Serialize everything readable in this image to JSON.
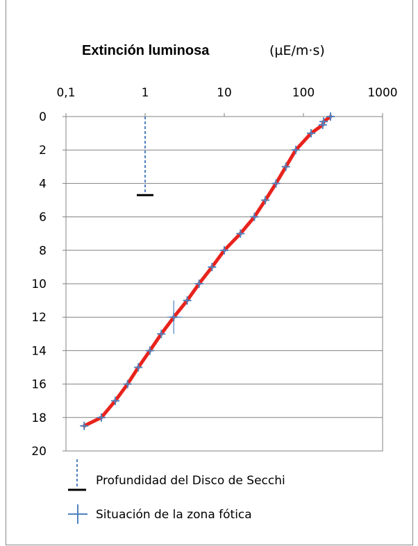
{
  "chart_data": {
    "type": "line",
    "title": "Extinción luminosa",
    "unit": "(µE/m·s)",
    "x_scale": "log",
    "xlim": [
      0.1,
      1000
    ],
    "x_tick_labels": [
      "0,1",
      "1",
      "10",
      "100",
      "1000"
    ],
    "x_tick_values": [
      0.1,
      1,
      10,
      100,
      1000
    ],
    "y_reversed": true,
    "ylim": [
      0,
      20
    ],
    "y_tick_labels": [
      "0",
      "2",
      "4",
      "6",
      "8",
      "10",
      "12",
      "14",
      "16",
      "18",
      "20"
    ],
    "y_tick_values": [
      0,
      2,
      4,
      6,
      8,
      10,
      12,
      14,
      16,
      18,
      20
    ],
    "grid": "horizontal",
    "legend_position": "bottom",
    "series": [
      {
        "name": "Situación de la zona fótica",
        "marker": "plus",
        "marker_color": "#4f81bd",
        "line_color": "#e8231d",
        "points": [
          {
            "x": 220,
            "y": 0
          },
          {
            "x": 180,
            "y": 0.3
          },
          {
            "x": 175,
            "y": 0.5
          },
          {
            "x": 125,
            "y": 1
          },
          {
            "x": 80,
            "y": 2
          },
          {
            "x": 60,
            "y": 3
          },
          {
            "x": 45,
            "y": 4
          },
          {
            "x": 33,
            "y": 5
          },
          {
            "x": 24,
            "y": 6
          },
          {
            "x": 16,
            "y": 7
          },
          {
            "x": 10,
            "y": 8
          },
          {
            "x": 7,
            "y": 9
          },
          {
            "x": 4.8,
            "y": 10
          },
          {
            "x": 3.4,
            "y": 11
          },
          {
            "x": 2.3,
            "y": 12
          },
          {
            "x": 1.6,
            "y": 13
          },
          {
            "x": 1.15,
            "y": 14
          },
          {
            "x": 0.82,
            "y": 15
          },
          {
            "x": 0.6,
            "y": 16
          },
          {
            "x": 0.42,
            "y": 17
          },
          {
            "x": 0.28,
            "y": 18
          },
          {
            "x": 0.17,
            "y": 18.5
          }
        ],
        "error_bar": {
          "x": 2.3,
          "y": 12,
          "x_low": 1.9,
          "x_high": 2.9,
          "y_low": 11,
          "y_high": 13
        }
      },
      {
        "name": "Profundidad del Disco de Secchi",
        "marker": "dash",
        "line_color": "#4f81bd",
        "marker_color": "#000000",
        "x": 1,
        "y_from": 0,
        "y_to": 4.7
      }
    ]
  }
}
